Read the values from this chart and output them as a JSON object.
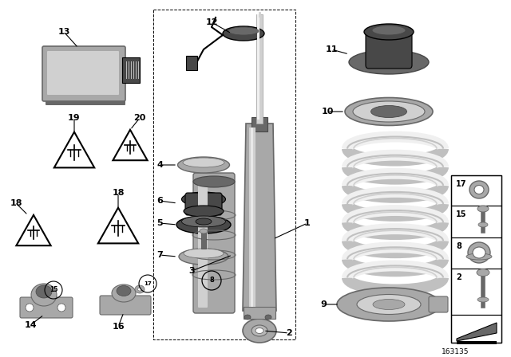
{
  "background_color": "#ffffff",
  "diagram_id": "163135",
  "colors": {
    "light_gray": "#d0d0d0",
    "mid_gray": "#a8a8a8",
    "dark_gray": "#686868",
    "very_dark": "#484848",
    "black": "#000000",
    "white": "#ffffff",
    "spring_white": "#f0f0f0",
    "spring_edge": "#c0c0c0"
  },
  "layout": {
    "fig_w": 6.4,
    "fig_h": 4.48,
    "dpi": 100,
    "xlim": [
      0,
      640
    ],
    "ylim": [
      0,
      448
    ]
  }
}
